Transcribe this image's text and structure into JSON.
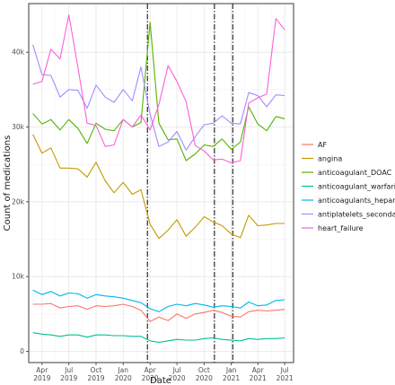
{
  "chart_data": {
    "type": "line",
    "xlabel": "Date",
    "ylabel": "Count of medications",
    "grid": true,
    "legend_position": "right",
    "xlim": [
      "2019-02-15",
      "2021-07-31"
    ],
    "ylim": [
      -1500,
      46500
    ],
    "y_ticks": [
      0,
      10000,
      20000,
      30000,
      40000
    ],
    "y_tick_labels": [
      "0",
      "10k",
      "20k",
      "30k",
      "40k"
    ],
    "x_ticks": [
      {
        "date": "2019-04-01",
        "label": [
          "Apr",
          "2019"
        ]
      },
      {
        "date": "2019-07-01",
        "label": [
          "Jul",
          "2019"
        ]
      },
      {
        "date": "2019-10-01",
        "label": [
          "Oct",
          "2019"
        ]
      },
      {
        "date": "2020-01-01",
        "label": [
          "Jan",
          "2020"
        ]
      },
      {
        "date": "2020-04-01",
        "label": [
          "Apr",
          "2020"
        ]
      },
      {
        "date": "2020-07-01",
        "label": [
          "Jul",
          "2020"
        ]
      },
      {
        "date": "2020-10-01",
        "label": [
          "Oct",
          "2020"
        ]
      },
      {
        "date": "2021-01-01",
        "label": [
          "Jan",
          "2021"
        ]
      },
      {
        "date": "2021-04-01",
        "label": [
          "Apr",
          "2021"
        ]
      },
      {
        "date": "2021-07-01",
        "label": [
          "Jul",
          "2021"
        ]
      }
    ],
    "reference_lines": [
      "2020-03-23",
      "2020-11-05",
      "2021-01-06"
    ],
    "x": [
      "2019-03-01",
      "2019-04-01",
      "2019-05-01",
      "2019-06-01",
      "2019-07-01",
      "2019-08-01",
      "2019-09-01",
      "2019-10-01",
      "2019-11-01",
      "2019-12-01",
      "2020-01-01",
      "2020-02-01",
      "2020-03-01",
      "2020-04-01",
      "2020-05-01",
      "2020-06-01",
      "2020-07-01",
      "2020-08-01",
      "2020-09-01",
      "2020-10-01",
      "2020-11-01",
      "2020-12-01",
      "2021-01-01",
      "2021-02-01",
      "2021-03-01",
      "2021-04-01",
      "2021-05-01",
      "2021-06-01",
      "2021-07-01"
    ],
    "series": [
      {
        "name": "AF",
        "color": "#F8766D",
        "values": [
          6300,
          6300,
          6400,
          5800,
          6000,
          6100,
          5600,
          6100,
          6000,
          6100,
          6300,
          6000,
          5500,
          4000,
          4600,
          4100,
          5000,
          4400,
          5000,
          5200,
          5500,
          5200,
          4700,
          4600,
          5300,
          5500,
          5400,
          5500,
          5600
        ]
      },
      {
        "name": "angina",
        "color": "#C49A00",
        "values": [
          29000,
          26500,
          27200,
          24500,
          24500,
          24400,
          23300,
          25300,
          22800,
          21200,
          22600,
          21000,
          21600,
          17000,
          15100,
          16200,
          17600,
          15400,
          16600,
          18000,
          17300,
          16800,
          15700,
          15200,
          18200,
          16800,
          16900,
          17100,
          17100
        ]
      },
      {
        "name": "anticoagulant_DOAC",
        "color": "#53B400",
        "values": [
          31800,
          30400,
          31000,
          29600,
          31000,
          29800,
          27800,
          30500,
          29700,
          29500,
          31000,
          30000,
          30600,
          44000,
          30500,
          28300,
          28400,
          25500,
          26400,
          27600,
          27400,
          28400,
          27000,
          28000,
          32700,
          30400,
          29500,
          31400,
          31100
        ]
      },
      {
        "name": "anticoagulant_warfarins",
        "color": "#00C094",
        "values": [
          2500,
          2300,
          2200,
          2000,
          2200,
          2200,
          1900,
          2200,
          2200,
          2100,
          2100,
          2000,
          2000,
          1400,
          1200,
          1400,
          1600,
          1500,
          1500,
          1700,
          1800,
          1600,
          1500,
          1400,
          1700,
          1600,
          1700,
          1700,
          1800
        ]
      },
      {
        "name": "anticoagulants_heparins",
        "color": "#00B6EB",
        "values": [
          8200,
          7600,
          8000,
          7400,
          7800,
          7700,
          7100,
          7600,
          7400,
          7300,
          7100,
          6800,
          6500,
          5700,
          5300,
          6000,
          6300,
          6100,
          6400,
          6200,
          5900,
          6100,
          6000,
          5800,
          6600,
          6100,
          6200,
          6800,
          6900
        ]
      },
      {
        "name": "antiplatelets_secondary",
        "color": "#A58AFF",
        "values": [
          41000,
          37000,
          36900,
          34000,
          35000,
          34900,
          32500,
          35600,
          34000,
          33300,
          35000,
          33500,
          38000,
          31700,
          27400,
          28000,
          29400,
          26900,
          28700,
          30300,
          30500,
          31500,
          30500,
          30400,
          34600,
          34200,
          32700,
          34300,
          34200
        ]
      },
      {
        "name": "heart_failure",
        "color": "#FB61D7",
        "values": [
          35700,
          36100,
          40400,
          39100,
          45000,
          37900,
          30500,
          30200,
          27400,
          27600,
          31000,
          30000,
          31600,
          29600,
          33000,
          38200,
          36100,
          33400,
          27500,
          26800,
          25600,
          25700,
          25200,
          25500,
          33200,
          33900,
          34400,
          44500,
          43000
        ]
      }
    ]
  }
}
